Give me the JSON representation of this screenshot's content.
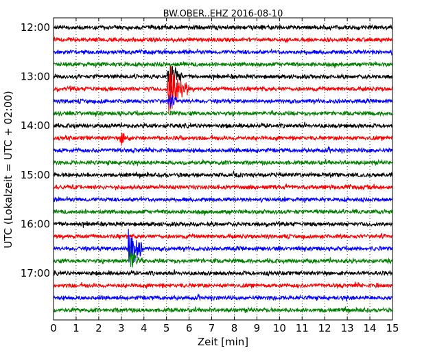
{
  "chart_data": {
    "type": "line",
    "title": "BW.OBER..EHZ 2016-08-10",
    "xlabel": "Zeit  [min]",
    "ylabel": "UTC (Lokalzeit = UTC + 02:00)",
    "xlim": [
      0,
      15
    ],
    "x_ticks": [
      "0",
      "1",
      "2",
      "3",
      "4",
      "5",
      "6",
      "7",
      "8",
      "9",
      "10",
      "11",
      "12",
      "13",
      "14",
      "15"
    ],
    "y_ticks": [
      "12:00",
      "13:00",
      "14:00",
      "15:00",
      "16:00",
      "17:00"
    ],
    "grid": "vertical dotted",
    "trace_start_utc": "12:00",
    "trace_interval_min": 15,
    "trace_colors": [
      "#000000",
      "#ff0000",
      "#0000ff",
      "#008000"
    ],
    "series": [
      {
        "start": "12:00",
        "color": "#000000",
        "events": []
      },
      {
        "start": "12:15",
        "color": "#ff0000",
        "events": []
      },
      {
        "start": "12:30",
        "color": "#0000ff",
        "events": []
      },
      {
        "start": "12:45",
        "color": "#008000",
        "events": []
      },
      {
        "start": "13:00",
        "color": "#000000",
        "events": [
          {
            "t": 5.1,
            "amp": 0.8,
            "dur": 0.3
          }
        ]
      },
      {
        "start": "13:15",
        "color": "#ff0000",
        "events": [
          {
            "t": 5.1,
            "amp": 1.0,
            "dur": 0.45
          }
        ]
      },
      {
        "start": "13:30",
        "color": "#0000ff",
        "events": [
          {
            "t": 5.1,
            "amp": 0.3,
            "dur": 0.2
          }
        ]
      },
      {
        "start": "13:45",
        "color": "#008000",
        "events": []
      },
      {
        "start": "14:00",
        "color": "#000000",
        "events": []
      },
      {
        "start": "14:15",
        "color": "#ff0000",
        "events": [
          {
            "t": 3.0,
            "amp": 0.25,
            "dur": 0.2
          }
        ]
      },
      {
        "start": "14:30",
        "color": "#0000ff",
        "events": []
      },
      {
        "start": "14:45",
        "color": "#008000",
        "events": []
      },
      {
        "start": "15:00",
        "color": "#000000",
        "events": []
      },
      {
        "start": "15:15",
        "color": "#ff0000",
        "events": []
      },
      {
        "start": "15:30",
        "color": "#0000ff",
        "events": []
      },
      {
        "start": "15:45",
        "color": "#008000",
        "events": []
      },
      {
        "start": "16:00",
        "color": "#000000",
        "events": []
      },
      {
        "start": "16:15",
        "color": "#ff0000",
        "events": []
      },
      {
        "start": "16:30",
        "color": "#0000ff",
        "events": [
          {
            "t": 3.3,
            "amp": 1.0,
            "dur": 0.35
          }
        ]
      },
      {
        "start": "16:45",
        "color": "#008000",
        "events": [
          {
            "t": 3.4,
            "amp": 0.6,
            "dur": 0.2
          }
        ]
      },
      {
        "start": "17:00",
        "color": "#000000",
        "events": []
      },
      {
        "start": "17:15",
        "color": "#ff0000",
        "events": []
      },
      {
        "start": "17:30",
        "color": "#0000ff",
        "events": []
      },
      {
        "start": "17:45",
        "color": "#008000",
        "events": []
      }
    ]
  }
}
